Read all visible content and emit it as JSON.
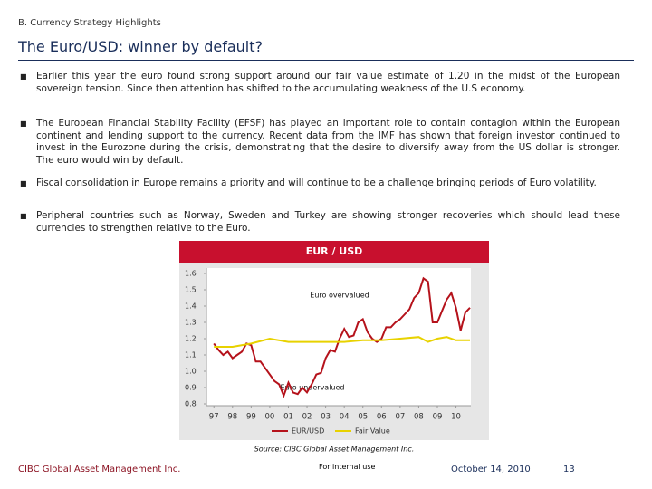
{
  "header": {
    "section": "B. Currency Strategy Highlights",
    "title": "The Euro/USD: winner by default?"
  },
  "bullets": [
    "Earlier this year the euro found strong support around our fair value estimate of 1.20 in the midst of the European sovereign tension. Since then attention has shifted to the accumulating weakness of the U.S economy.",
    "The European Financial Stability Facility (EFSF) has played an important role to contain contagion within the European continent and lending support to the currency. Recent data from the IMF has shown that foreign investor continued to invest in the Eurozone during the crisis, demonstrating that the desire to diversify away from the US dollar is stronger. The euro would win by default.",
    "Fiscal consolidation in Europe remains a priority and will continue to be a challenge bringing periods of Euro volatility.",
    "Peripheral countries such as Norway, Sweden and Turkey are showing stronger recoveries which should lead these currencies to strengthen relative to the Euro."
  ],
  "chart_data": {
    "type": "line",
    "title": "EUR / USD",
    "annotations": [
      "Euro overvalued",
      "Euro undervalued"
    ],
    "xlim": [
      1996.6,
      2010.8
    ],
    "xticks": [
      {
        "value": 1997,
        "label": "97"
      },
      {
        "value": 1998,
        "label": "98"
      },
      {
        "value": 1999,
        "label": "99"
      },
      {
        "value": 2000,
        "label": "00"
      },
      {
        "value": 2001,
        "label": "01"
      },
      {
        "value": 2002,
        "label": "02"
      },
      {
        "value": 2003,
        "label": "03"
      },
      {
        "value": 2004,
        "label": "04"
      },
      {
        "value": 2005,
        "label": "05"
      },
      {
        "value": 2006,
        "label": "06"
      },
      {
        "value": 2007,
        "label": "07"
      },
      {
        "value": 2008,
        "label": "08"
      },
      {
        "value": 2009,
        "label": "09"
      },
      {
        "value": 2010,
        "label": "10"
      }
    ],
    "ylim": [
      0.8,
      1.6
    ],
    "yticks": [
      0.8,
      0.9,
      {
        "value": 1,
        "label": "1.0"
      },
      1.1,
      1.2,
      1.3,
      1.4,
      1.5,
      1.6
    ],
    "grid": false,
    "series": [
      {
        "name": "EUR/USD",
        "color": "#b5121b",
        "x": [
          1997,
          1997.25,
          1997.5,
          1997.75,
          1998,
          1998.25,
          1998.5,
          1998.75,
          1999,
          1999.25,
          1999.5,
          1999.75,
          2000,
          2000.25,
          2000.5,
          2000.75,
          2001,
          2001.25,
          2001.5,
          2001.75,
          2002,
          2002.25,
          2002.5,
          2002.75,
          2003,
          2003.25,
          2003.5,
          2003.75,
          2004,
          2004.25,
          2004.5,
          2004.75,
          2005,
          2005.25,
          2005.5,
          2005.75,
          2006,
          2006.25,
          2006.5,
          2006.75,
          2007,
          2007.25,
          2007.5,
          2007.75,
          2008,
          2008.25,
          2008.5,
          2008.75,
          2009,
          2009.25,
          2009.5,
          2009.75,
          2010,
          2010.25,
          2010.5,
          2010.75
        ],
        "values": [
          1.17,
          1.13,
          1.1,
          1.12,
          1.08,
          1.1,
          1.12,
          1.17,
          1.16,
          1.06,
          1.06,
          1.02,
          0.98,
          0.94,
          0.92,
          0.85,
          0.93,
          0.87,
          0.86,
          0.9,
          0.87,
          0.92,
          0.98,
          0.99,
          1.08,
          1.13,
          1.12,
          1.2,
          1.26,
          1.21,
          1.22,
          1.3,
          1.32,
          1.24,
          1.2,
          1.18,
          1.2,
          1.27,
          1.27,
          1.3,
          1.32,
          1.35,
          1.38,
          1.45,
          1.48,
          1.57,
          1.55,
          1.3,
          1.3,
          1.37,
          1.44,
          1.48,
          1.39,
          1.25,
          1.36,
          1.39
        ]
      },
      {
        "name": "Fair Value",
        "color": "#e8d200",
        "x": [
          1997,
          1998,
          1999,
          2000,
          2001,
          2002,
          2003,
          2004,
          2005,
          2006,
          2007,
          2008,
          2008.5,
          2009,
          2009.5,
          2010,
          2010.75
        ],
        "values": [
          1.15,
          1.15,
          1.17,
          1.2,
          1.18,
          1.18,
          1.18,
          1.18,
          1.19,
          1.19,
          1.2,
          1.21,
          1.18,
          1.2,
          1.21,
          1.19,
          1.19
        ]
      }
    ],
    "source": "Source: CIBC Global Asset Management Inc."
  },
  "footer": {
    "company": "CIBC Global Asset Management Inc.",
    "note": "For internal use",
    "date": "October 14, 2010",
    "page": "13"
  }
}
